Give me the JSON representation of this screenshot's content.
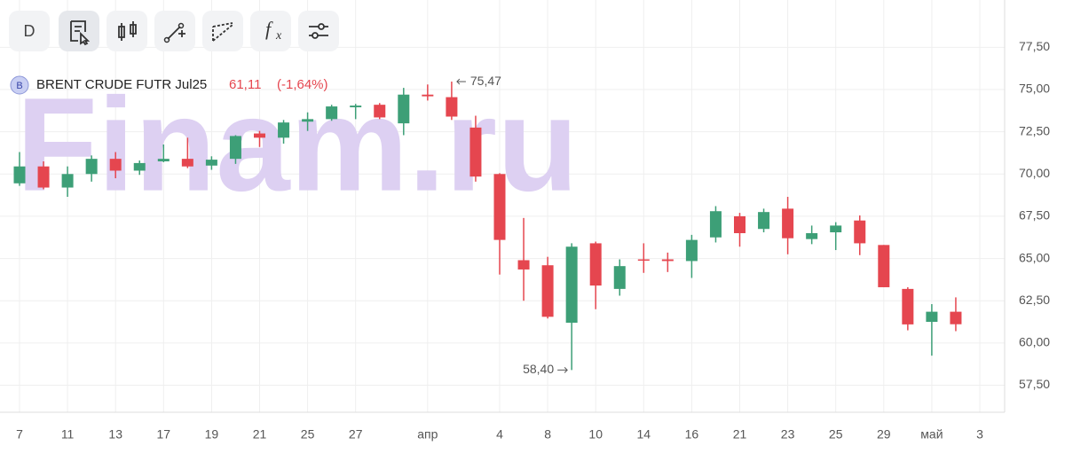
{
  "toolbar": {
    "interval": "D",
    "formula": "f",
    "formula_sub": "x"
  },
  "header": {
    "badge": "B",
    "symbol": "BRENT CRUDE FUTR Jul25",
    "last": "61,11",
    "change": "(-1,64%)"
  },
  "watermark": "Finam.ru",
  "chart_data": {
    "type": "candlestick",
    "categories": [
      "7",
      null,
      "11",
      null,
      "13",
      null,
      "17",
      null,
      "19",
      null,
      "21",
      null,
      "25",
      null,
      "27",
      null,
      null,
      "апр",
      null,
      null,
      "4",
      null,
      "8",
      null,
      "10",
      null,
      "14",
      null,
      "16",
      null,
      "21",
      null,
      "23",
      null,
      "25",
      null,
      "29",
      null,
      "май",
      null,
      "3"
    ],
    "open": [
      69.45,
      70.45,
      69.2,
      70.0,
      70.9,
      70.2,
      70.75,
      70.9,
      70.5,
      70.9,
      72.4,
      72.15,
      73.1,
      73.25,
      73.95,
      74.1,
      73.0,
      74.7,
      74.55,
      72.75,
      70.0,
      64.9,
      64.6,
      61.2,
      65.9,
      63.2,
      64.95,
      64.95,
      64.85,
      66.25,
      67.5,
      66.75,
      67.95,
      66.15,
      66.55,
      67.25,
      65.8,
      63.2,
      61.25,
      61.85,
      null
    ],
    "high": [
      71.3,
      70.75,
      70.45,
      71.1,
      71.3,
      70.8,
      71.75,
      72.15,
      71.05,
      72.3,
      72.55,
      73.2,
      73.65,
      74.1,
      74.15,
      74.2,
      75.1,
      75.3,
      75.47,
      73.45,
      70.05,
      67.4,
      65.1,
      65.9,
      66.0,
      64.95,
      65.9,
      65.35,
      66.4,
      68.1,
      67.7,
      67.95,
      68.65,
      66.95,
      67.15,
      67.55,
      65.8,
      63.3,
      62.3,
      62.7,
      null
    ],
    "low": [
      69.3,
      69.1,
      68.65,
      69.55,
      69.75,
      69.95,
      70.7,
      70.35,
      70.25,
      70.6,
      71.6,
      71.8,
      72.55,
      73.15,
      73.25,
      73.25,
      72.3,
      74.35,
      73.2,
      69.55,
      64.05,
      62.5,
      61.45,
      58.4,
      62.0,
      62.8,
      64.15,
      64.2,
      63.85,
      65.95,
      65.7,
      66.55,
      65.25,
      65.85,
      65.5,
      65.2,
      63.3,
      60.75,
      59.25,
      60.7,
      null
    ],
    "close": [
      70.45,
      69.2,
      70.0,
      70.9,
      70.2,
      70.65,
      70.9,
      70.45,
      70.85,
      72.25,
      72.15,
      73.05,
      73.25,
      74.0,
      74.05,
      73.35,
      74.7,
      74.6,
      73.4,
      69.85,
      66.1,
      64.35,
      61.55,
      65.7,
      63.4,
      64.55,
      64.9,
      64.85,
      66.1,
      67.8,
      66.5,
      67.75,
      66.2,
      66.5,
      66.95,
      65.9,
      63.3,
      61.1,
      61.85,
      61.11,
      null
    ],
    "up_color": "#3d9f77",
    "down_color": "#e5464f",
    "ylim": [
      55.9,
      80.3
    ],
    "yticks": [
      {
        "value": 57.5,
        "label": "57,50"
      },
      {
        "value": 60,
        "label": "60,00"
      },
      {
        "value": 62.5,
        "label": "62,50"
      },
      {
        "value": 65,
        "label": "65,00"
      },
      {
        "value": 67.5,
        "label": "67,50"
      },
      {
        "value": 70,
        "label": "70,00"
      },
      {
        "value": 72.5,
        "label": "72,50"
      },
      {
        "value": 75,
        "label": "75,00"
      },
      {
        "value": 77.5,
        "label": "77,50"
      }
    ],
    "grid": true,
    "annotations": [
      {
        "index": 18,
        "value": 75.47,
        "text": "75,47"
      },
      {
        "index": 23,
        "value": 58.4,
        "text": "58,40"
      }
    ]
  }
}
